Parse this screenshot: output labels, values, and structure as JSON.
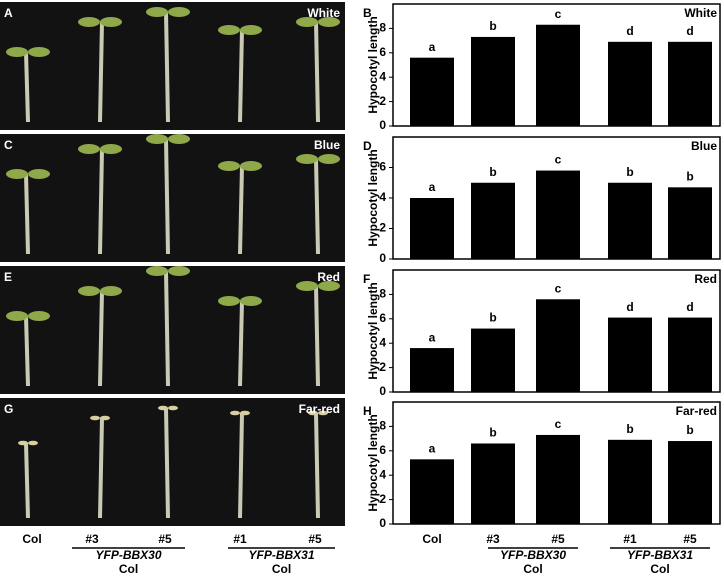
{
  "photos": [
    {
      "letter": "A",
      "condition": "White"
    },
    {
      "letter": "C",
      "condition": "Blue"
    },
    {
      "letter": "E",
      "condition": "Red"
    },
    {
      "letter": "G",
      "condition": "Far-red"
    }
  ],
  "photo_axis": {
    "categories": [
      "Col",
      "#3",
      "#5",
      "#1",
      "#5"
    ],
    "groups": [
      {
        "name": "YFP-BBX30",
        "background": "Col"
      },
      {
        "name": "YFP-BBX31",
        "background": "Col"
      }
    ]
  },
  "chart_data": [
    {
      "type": "bar",
      "letter": "B",
      "title": "White",
      "ylabel": "Hypocotyl length",
      "values": [
        5.6,
        7.3,
        8.3,
        6.9,
        6.9
      ],
      "sig_labels": [
        "a",
        "b",
        "c",
        "d",
        "d"
      ],
      "color": "#000000",
      "ylim": [
        0,
        10
      ],
      "yticks": [
        0,
        2,
        4,
        6,
        8
      ]
    },
    {
      "type": "bar",
      "letter": "D",
      "title": "Blue",
      "ylabel": "Hypocotyl length",
      "values": [
        4.0,
        5.0,
        5.8,
        5.0,
        4.7
      ],
      "sig_labels": [
        "a",
        "b",
        "c",
        "b",
        "b"
      ],
      "color": "#000000",
      "ylim": [
        0,
        8
      ],
      "yticks": [
        0,
        2,
        4,
        6
      ]
    },
    {
      "type": "bar",
      "letter": "F",
      "title": "Red",
      "ylabel": "Hypocotyl length",
      "values": [
        3.6,
        5.2,
        7.6,
        6.1,
        6.1
      ],
      "sig_labels": [
        "a",
        "b",
        "c",
        "d",
        "d"
      ],
      "color": "#000000",
      "ylim": [
        0,
        10
      ],
      "yticks": [
        0,
        2,
        4,
        6,
        8
      ]
    },
    {
      "type": "bar",
      "letter": "H",
      "title": "Far-red",
      "ylabel": "Hypocotyl length",
      "categories": [
        "Col",
        "#3",
        "#5",
        "#1",
        "#5"
      ],
      "groups": [
        {
          "name": "YFP-BBX30",
          "background": "Col"
        },
        {
          "name": "YFP-BBX31",
          "background": "Col"
        }
      ],
      "values": [
        5.3,
        6.6,
        7.3,
        6.9,
        6.8
      ],
      "sig_labels": [
        "a",
        "b",
        "c",
        "b",
        "b"
      ],
      "color": "#000000",
      "ylim": [
        0,
        10
      ],
      "yticks": [
        0,
        2,
        4,
        6,
        8
      ]
    }
  ]
}
